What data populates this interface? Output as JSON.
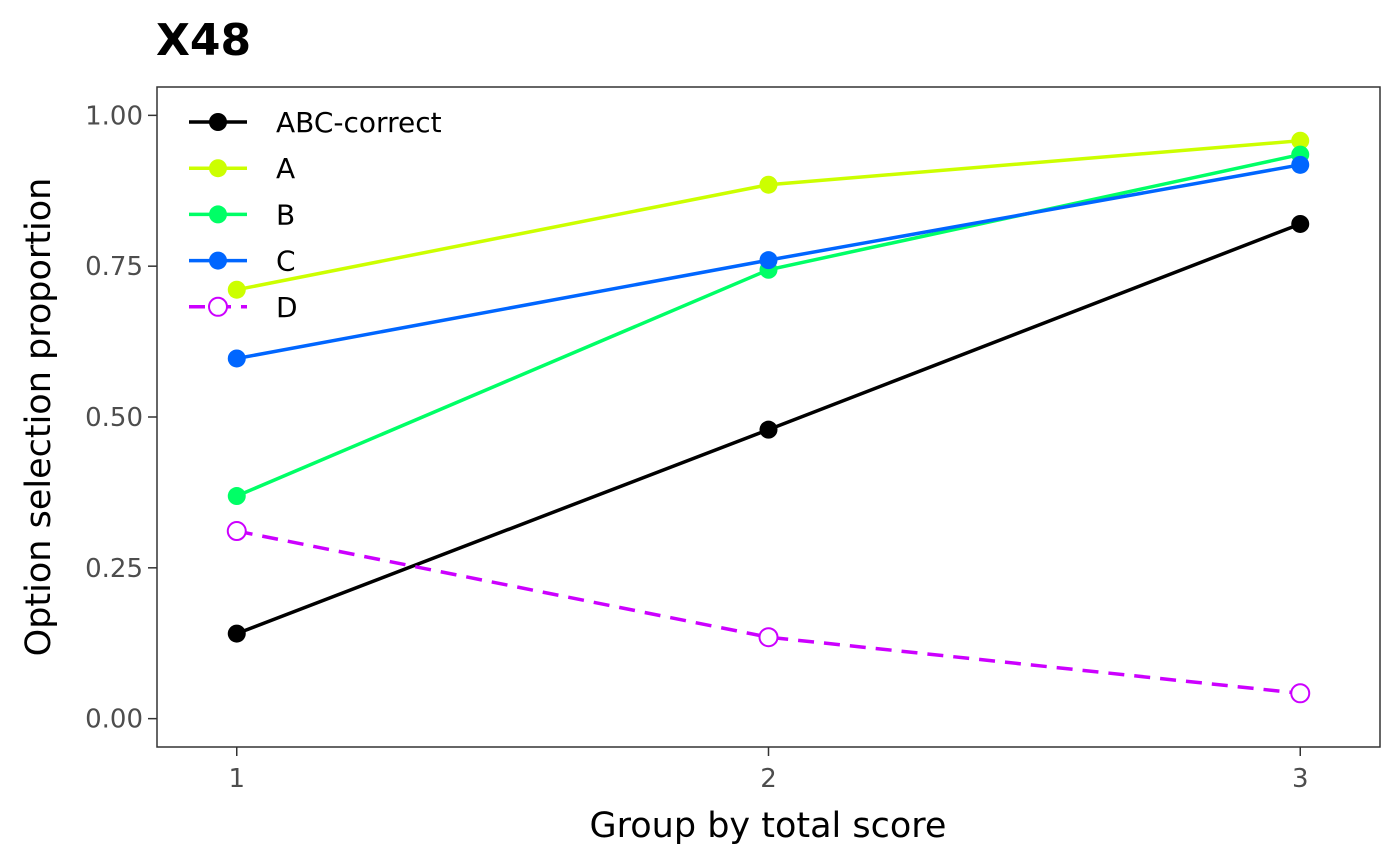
{
  "chart_data": {
    "type": "line",
    "title": "X48",
    "xlabel": "Group by total score",
    "ylabel": "Option selection proportion",
    "x": [
      1,
      2,
      3
    ],
    "x_tick_labels": [
      "1",
      "2",
      "3"
    ],
    "xlim": [
      0.85,
      3.15
    ],
    "ylim": [
      -0.047,
      1.047
    ],
    "y_ticks": [
      0,
      0.25,
      0.5,
      0.75,
      1.0
    ],
    "y_tick_labels": [
      "0.00",
      "0.25",
      "0.50",
      "0.75",
      "1.00"
    ],
    "grid": false,
    "legend_position": "top-left",
    "series": [
      {
        "name": "ABC-correct",
        "values": [
          0.141,
          0.479,
          0.82
        ],
        "color": "#000000",
        "dashed": false,
        "marker": "filled"
      },
      {
        "name": "A",
        "values": [
          0.711,
          0.885,
          0.958
        ],
        "color": "#CCFF00",
        "dashed": false,
        "marker": "filled"
      },
      {
        "name": "B",
        "values": [
          0.369,
          0.744,
          0.935
        ],
        "color": "#00FF66",
        "dashed": false,
        "marker": "filled"
      },
      {
        "name": "C",
        "values": [
          0.597,
          0.76,
          0.918
        ],
        "color": "#0066FF",
        "dashed": false,
        "marker": "filled"
      },
      {
        "name": "D",
        "values": [
          0.311,
          0.135,
          0.042
        ],
        "color": "#CC00FF",
        "dashed": true,
        "marker": "open"
      }
    ]
  }
}
